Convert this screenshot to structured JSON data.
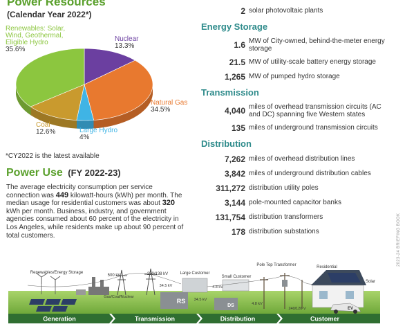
{
  "power_resources": {
    "title": "Power Resources",
    "subtitle": "(Calendar Year 2022*)",
    "chart_data": {
      "type": "pie",
      "categories": [
        "Nuclear",
        "Natural Gas",
        "Large Hydro",
        "Coal",
        "Renewables: Solar, Wind, Geothermal, Eligible Hydro"
      ],
      "values": [
        13.3,
        34.5,
        4,
        12.6,
        35.6
      ],
      "value_labels": [
        "13.3%",
        "34.5%",
        "4%",
        "12.6%",
        "35.6%"
      ],
      "colors": [
        "#6b3fa0",
        "#e8792f",
        "#3fb4e5",
        "#c99a2e",
        "#8cc63f"
      ]
    },
    "footnote": "*CY2022 is the latest available"
  },
  "power_use": {
    "title": "Power Use",
    "subtitle": "(FY 2022-23)",
    "paragraph": [
      "The average electricity consumption per service connection was ",
      "449",
      " kilowatt-hours (kWh) per month. The median usage for residential customers was about ",
      "320",
      " kWh per month. Business, industry, and government agencies consumed about 60 percent of the electricity in Los Angeles, while residents make up about 90 percent of total customers."
    ]
  },
  "facts": {
    "top": {
      "value": "2",
      "text": "solar photovoltaic plants"
    },
    "sections": [
      {
        "heading": "Energy Storage",
        "items": [
          {
            "value": "1.6",
            "text": "MW of City-owned, behind-the-meter energy storage"
          },
          {
            "value": "21.5",
            "text": "MW of utility-scale battery energy storage"
          },
          {
            "value": "1,265",
            "text": "MW of pumped hydro storage"
          }
        ]
      },
      {
        "heading": "Transmission",
        "items": [
          {
            "value": "4,040",
            "text": "miles of overhead transmission circuits (AC and DC) spanning five Western states"
          },
          {
            "value": "135",
            "text": "miles of underground transmission circuits"
          }
        ]
      },
      {
        "heading": "Distribution",
        "items": [
          {
            "value": "7,262",
            "text": "miles of overhead distribution lines"
          },
          {
            "value": "3,842",
            "text": "miles of underground distribution cables"
          },
          {
            "value": "311,272",
            "text": "distribution utility poles"
          },
          {
            "value": "3,144",
            "text": "pole-mounted capacitor banks"
          },
          {
            "value": "131,754",
            "text": "distribution transformers"
          },
          {
            "value": "178",
            "text": "distribution substations"
          }
        ]
      }
    ]
  },
  "infographic": {
    "labels": [
      "Renewables/Energy Storage",
      "500 kV",
      "230/138 kV",
      "Large Customer",
      "Small Customer",
      "Pole Top Transformer",
      "Residential",
      "Solar",
      "Gas/Coal/Nuclear",
      "34.5 kV",
      "34.5 kV",
      "4.8 kV",
      "4.8 kV",
      "240/120 V",
      "RS",
      "DS",
      "EV"
    ],
    "stages": [
      "Generation",
      "Transmission",
      "Distribution",
      "Customer"
    ]
  },
  "side_text": "2023-24 BRIEFING BOOK"
}
